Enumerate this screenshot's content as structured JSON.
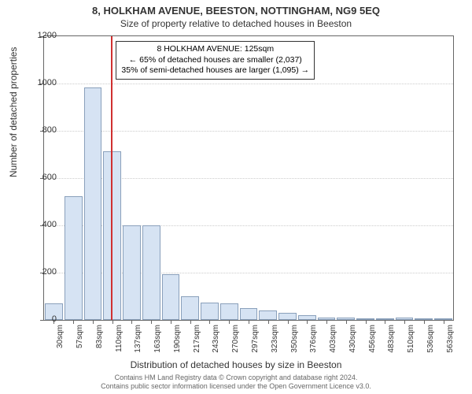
{
  "titles": {
    "line1": "8, HOLKHAM AVENUE, BEESTON, NOTTINGHAM, NG9 5EQ",
    "line2": "Size of property relative to detached houses in Beeston"
  },
  "axes": {
    "ylabel": "Number of detached properties",
    "xlabel": "Distribution of detached houses by size in Beeston",
    "ylim_max": 1200,
    "yticks": [
      0,
      200,
      400,
      600,
      800,
      1000,
      1200
    ],
    "xtick_labels": [
      "30sqm",
      "57sqm",
      "83sqm",
      "110sqm",
      "137sqm",
      "163sqm",
      "190sqm",
      "217sqm",
      "243sqm",
      "270sqm",
      "297sqm",
      "323sqm",
      "350sqm",
      "376sqm",
      "403sqm",
      "430sqm",
      "456sqm",
      "483sqm",
      "510sqm",
      "536sqm",
      "563sqm"
    ]
  },
  "chart": {
    "bar_color": "#d6e3f3",
    "bar_border_color": "#8aa0bb",
    "background": "#ffffff",
    "grid_color": "#cccccc",
    "axis_color": "#666666",
    "marker_color": "#d03030",
    "values": [
      70,
      525,
      985,
      715,
      400,
      400,
      195,
      100,
      75,
      70,
      50,
      40,
      30,
      20,
      10,
      10,
      5,
      5,
      10,
      5,
      5
    ],
    "marker_index": 3
  },
  "info_box": {
    "line1": "8 HOLKHAM AVENUE: 125sqm",
    "line2": "← 65% of detached houses are smaller (2,037)",
    "line3": "35% of semi-detached houses are larger (1,095) →"
  },
  "footer": {
    "line1": "Contains HM Land Registry data © Crown copyright and database right 2024.",
    "line2": "Contains public sector information licensed under the Open Government Licence v3.0."
  }
}
